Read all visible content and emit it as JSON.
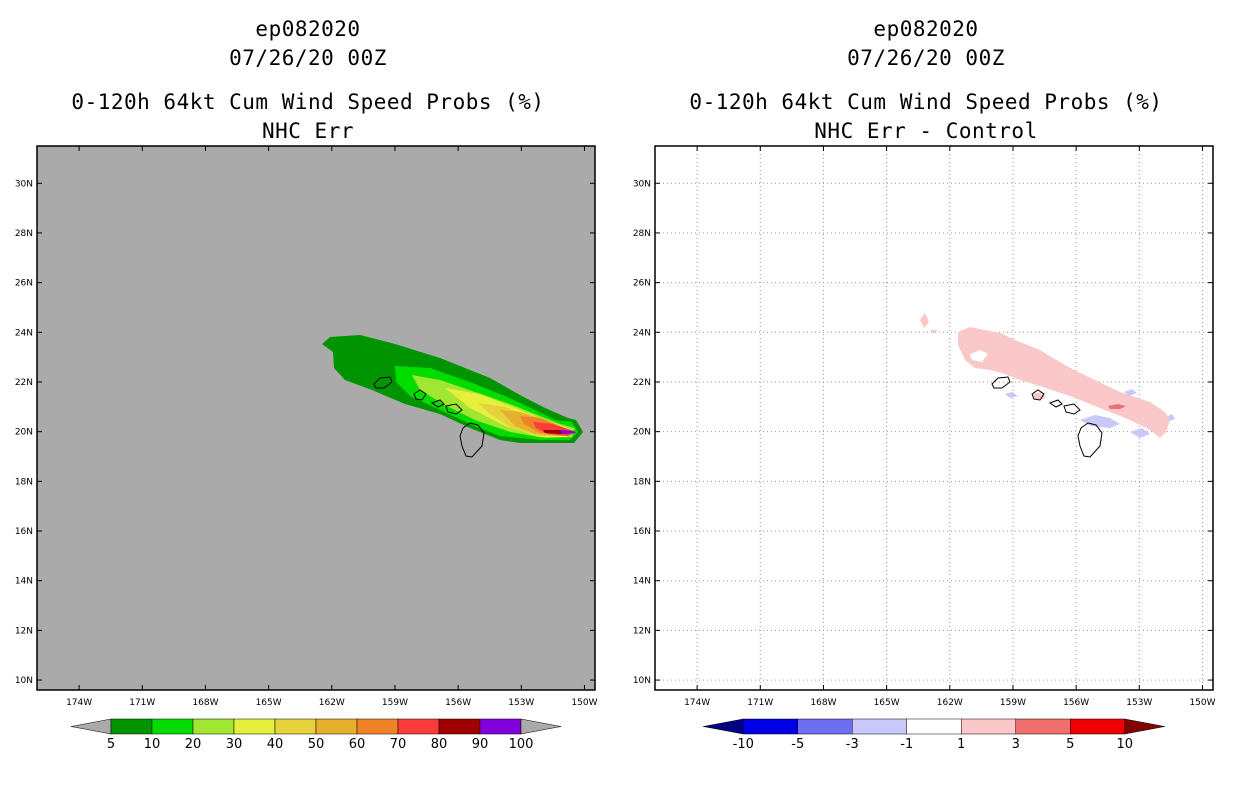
{
  "left": {
    "storm": "ep082020",
    "datetime": "07/26/20 00Z",
    "title": "0-120h 64kt Cum Wind Speed Probs (%)",
    "subtitle": "NHC Err"
  },
  "right": {
    "storm": "ep082020",
    "datetime": "07/26/20 00Z",
    "title": "0-120h 64kt Cum Wind Speed Probs (%)",
    "subtitle": "NHC Err - Control"
  },
  "chart_data": [
    {
      "type": "heatmap",
      "name": "probability",
      "background": "#aaaaaa",
      "grid": false,
      "lon_ticks": [
        "174W",
        "171W",
        "168W",
        "165W",
        "162W",
        "159W",
        "156W",
        "153W",
        "150W"
      ],
      "lat_ticks": [
        "30N",
        "28N",
        "26N",
        "24N",
        "22N",
        "20N",
        "18N",
        "16N",
        "14N",
        "12N",
        "10N"
      ],
      "lon_range": [
        -176,
        -149.5
      ],
      "lat_range": [
        9.6,
        31.5
      ],
      "colorbar": {
        "labels": [
          "5",
          "10",
          "20",
          "30",
          "40",
          "50",
          "60",
          "70",
          "80",
          "90",
          "100"
        ],
        "colors": [
          "#009500",
          "#00dc00",
          "#a0e632",
          "#e6f03c",
          "#e6d23c",
          "#e6af2d",
          "#f08228",
          "#fa3c3c",
          "#a00000",
          "#8200dc"
        ],
        "under": "#aaaaaa",
        "over": "#aaaaaa"
      },
      "contour_levels": [
        5,
        10,
        20,
        30,
        40,
        50,
        60,
        70,
        80,
        90
      ]
    },
    {
      "type": "heatmap",
      "name": "difference",
      "background": "#ffffff",
      "grid": true,
      "lon_ticks": [
        "174W",
        "171W",
        "168W",
        "165W",
        "162W",
        "159W",
        "156W",
        "153W",
        "150W"
      ],
      "lat_ticks": [
        "30N",
        "28N",
        "26N",
        "24N",
        "22N",
        "20N",
        "18N",
        "16N",
        "14N",
        "12N",
        "10N"
      ],
      "lon_range": [
        -176,
        -149.5
      ],
      "lat_range": [
        9.6,
        31.5
      ],
      "colorbar": {
        "labels": [
          "-10",
          "-5",
          "-3",
          "-1",
          "1",
          "3",
          "5",
          "10"
        ],
        "colors": [
          "#0000e6",
          "#6e6ef0",
          "#c8c8fa",
          "#ffffff",
          "#fac8c8",
          "#f06e6e",
          "#f00000"
        ],
        "under": "#000082",
        "over": "#820000"
      },
      "contour_levels": [
        -3,
        1,
        3
      ]
    }
  ],
  "icons": {
    "islands": "hawaiian-islands-outline"
  }
}
